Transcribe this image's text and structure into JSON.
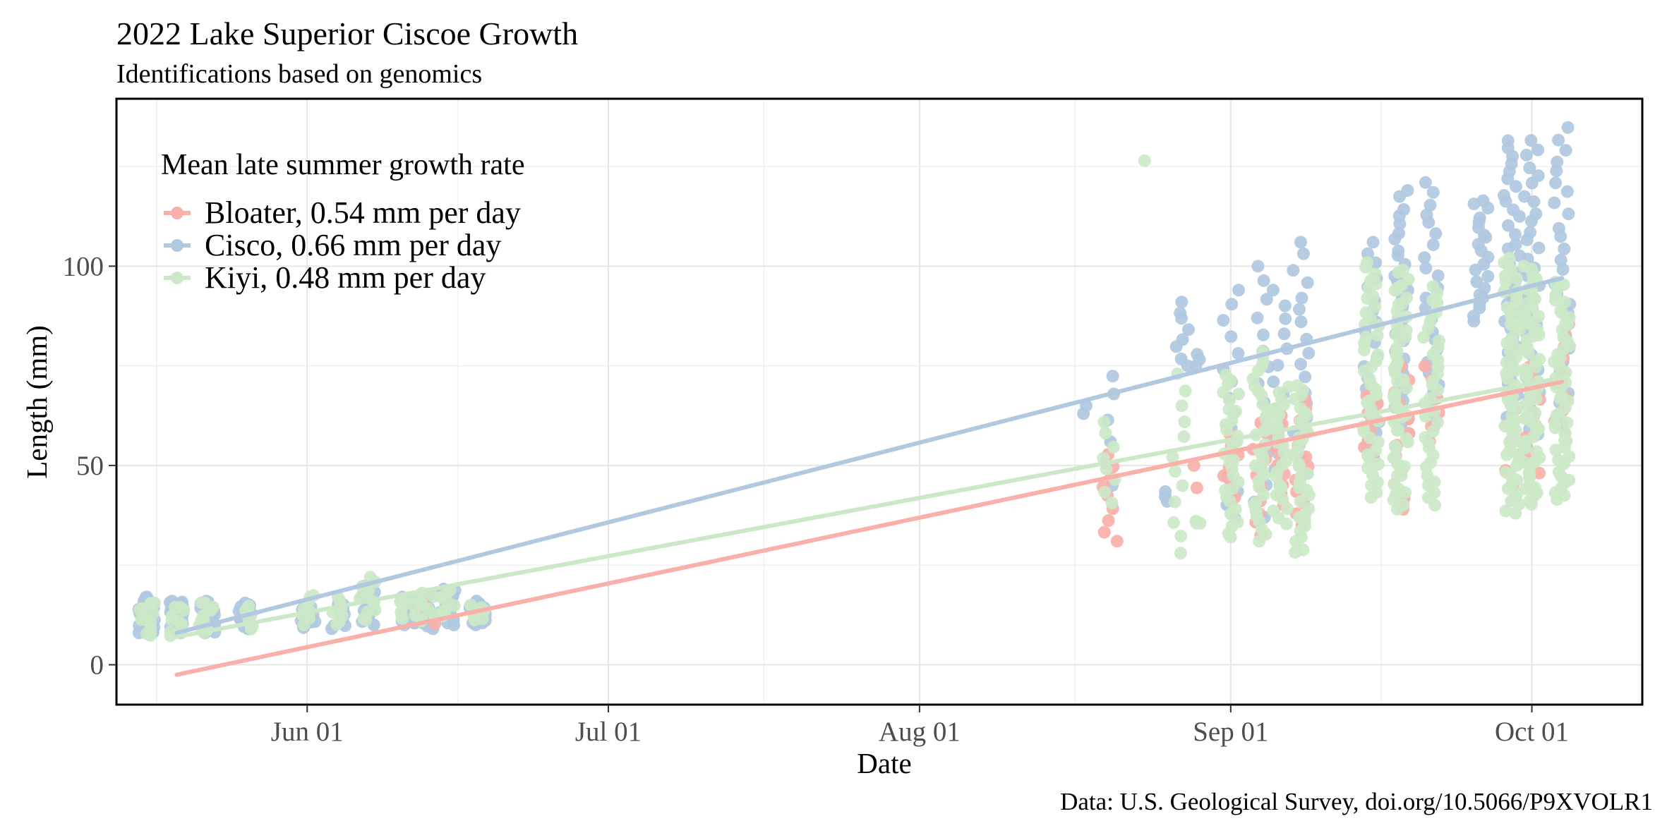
{
  "chart_data": {
    "type": "scatter",
    "title": "2022 Lake Superior Ciscoe Growth",
    "subtitle": "Identifications based on genomics",
    "xlabel": "Date",
    "ylabel": "Length (mm)",
    "caption": "Data: U.S. Geological Survey, doi.org/10.5066/P9XVOLR1",
    "x_axis": {
      "type": "date",
      "range": [
        "2022-05-13",
        "2022-10-12"
      ],
      "ticks": [
        {
          "value": "2022-06-01",
          "label": "Jun 01"
        },
        {
          "value": "2022-07-01",
          "label": "Jul 01"
        },
        {
          "value": "2022-08-01",
          "label": "Aug 01"
        },
        {
          "value": "2022-09-01",
          "label": "Sep 01"
        },
        {
          "value": "2022-10-01",
          "label": "Oct 01"
        }
      ]
    },
    "y_axis": {
      "range": [
        -10,
        142
      ],
      "ticks": [
        {
          "value": 0,
          "label": "0"
        },
        {
          "value": 50,
          "label": "50"
        },
        {
          "value": 100,
          "label": "100"
        }
      ]
    },
    "grid": true,
    "legend": {
      "title": "Mean late summer growth rate",
      "position": "top-left"
    },
    "series": [
      {
        "name": "Bloater, 0.54 mm per day",
        "color": "#F8B0A8",
        "trend": {
          "start": [
            "2022-05-19",
            -2.5
          ],
          "end": [
            "2022-10-04",
            71
          ]
        },
        "clusters": [
          {
            "date": "2022-06-13",
            "min": 10,
            "max": 17,
            "n": 5
          },
          {
            "date": "2022-08-20",
            "min": 31,
            "max": 53,
            "n": 9
          },
          {
            "date": "2022-08-29",
            "min": 44,
            "max": 50,
            "n": 2
          },
          {
            "date": "2022-09-01",
            "min": 42,
            "max": 58,
            "n": 7
          },
          {
            "date": "2022-09-04",
            "min": 32,
            "max": 61,
            "n": 10
          },
          {
            "date": "2022-09-06",
            "min": 40,
            "max": 63,
            "n": 10
          },
          {
            "date": "2022-09-08",
            "min": 35,
            "max": 67,
            "n": 12
          },
          {
            "date": "2022-09-15",
            "min": 52,
            "max": 68,
            "n": 8
          },
          {
            "date": "2022-09-18",
            "min": 39,
            "max": 75,
            "n": 12
          },
          {
            "date": "2022-09-21",
            "min": 56,
            "max": 75,
            "n": 6
          },
          {
            "date": "2022-09-29",
            "min": 45,
            "max": 72,
            "n": 8
          },
          {
            "date": "2022-10-01",
            "min": 48,
            "max": 75,
            "n": 10
          },
          {
            "date": "2022-10-04",
            "min": 58,
            "max": 86,
            "n": 10
          }
        ]
      },
      {
        "name": "Cisco, 0.66 mm per day",
        "color": "#B0C8E0",
        "trend": {
          "start": [
            "2022-05-19",
            8
          ],
          "end": [
            "2022-10-04",
            97
          ]
        },
        "clusters": [
          {
            "date": "2022-05-16",
            "min": 8,
            "max": 17,
            "n": 30
          },
          {
            "date": "2022-05-19",
            "min": 8,
            "max": 16,
            "n": 26
          },
          {
            "date": "2022-05-22",
            "min": 8,
            "max": 16,
            "n": 22
          },
          {
            "date": "2022-05-26",
            "min": 9,
            "max": 16,
            "n": 16
          },
          {
            "date": "2022-06-01",
            "min": 9,
            "max": 15,
            "n": 14
          },
          {
            "date": "2022-06-04",
            "min": 9,
            "max": 16,
            "n": 14
          },
          {
            "date": "2022-06-07",
            "min": 10,
            "max": 20,
            "n": 14
          },
          {
            "date": "2022-06-11",
            "min": 10,
            "max": 17,
            "n": 16
          },
          {
            "date": "2022-06-13",
            "min": 9,
            "max": 18,
            "n": 16
          },
          {
            "date": "2022-06-15",
            "min": 10,
            "max": 19,
            "n": 18
          },
          {
            "date": "2022-06-18",
            "min": 10,
            "max": 16,
            "n": 12
          },
          {
            "date": "2022-08-17",
            "min": 63,
            "max": 65,
            "n": 2
          },
          {
            "date": "2022-08-20",
            "min": 45,
            "max": 73,
            "n": 6
          },
          {
            "date": "2022-08-25",
            "min": 41,
            "max": 44,
            "n": 3
          },
          {
            "date": "2022-08-27",
            "min": 75,
            "max": 91,
            "n": 8
          },
          {
            "date": "2022-08-29",
            "min": 75,
            "max": 78,
            "n": 3
          },
          {
            "date": "2022-09-01",
            "min": 36,
            "max": 94,
            "n": 16
          },
          {
            "date": "2022-09-04",
            "min": 37,
            "max": 100,
            "n": 16
          },
          {
            "date": "2022-09-06",
            "min": 45,
            "max": 94,
            "n": 14
          },
          {
            "date": "2022-09-08",
            "min": 48,
            "max": 106,
            "n": 18
          },
          {
            "date": "2022-09-15",
            "min": 52,
            "max": 106,
            "n": 20
          },
          {
            "date": "2022-09-18",
            "min": 58,
            "max": 119,
            "n": 30
          },
          {
            "date": "2022-09-21",
            "min": 60,
            "max": 121,
            "n": 24
          },
          {
            "date": "2022-09-26",
            "min": 86,
            "max": 117,
            "n": 22
          },
          {
            "date": "2022-09-29",
            "min": 62,
            "max": 132,
            "n": 36
          },
          {
            "date": "2022-10-01",
            "min": 55,
            "max": 132,
            "n": 34
          },
          {
            "date": "2022-10-04",
            "min": 60,
            "max": 135,
            "n": 28
          }
        ]
      },
      {
        "name": "Kiyi, 0.48 mm per day",
        "color": "#CCE8C8",
        "trend": {
          "start": [
            "2022-05-19",
            7
          ],
          "end": [
            "2022-10-04",
            72
          ]
        },
        "clusters": [
          {
            "date": "2022-05-16",
            "min": 7,
            "max": 16,
            "n": 12
          },
          {
            "date": "2022-05-19",
            "min": 7,
            "max": 15,
            "n": 10
          },
          {
            "date": "2022-05-22",
            "min": 8,
            "max": 16,
            "n": 10
          },
          {
            "date": "2022-05-26",
            "min": 9,
            "max": 15,
            "n": 6
          },
          {
            "date": "2022-06-01",
            "min": 10,
            "max": 18,
            "n": 8
          },
          {
            "date": "2022-06-04",
            "min": 10,
            "max": 17,
            "n": 8
          },
          {
            "date": "2022-06-07",
            "min": 11,
            "max": 22,
            "n": 12
          },
          {
            "date": "2022-06-11",
            "min": 11,
            "max": 17,
            "n": 8
          },
          {
            "date": "2022-06-13",
            "min": 11,
            "max": 18,
            "n": 8
          },
          {
            "date": "2022-06-15",
            "min": 12,
            "max": 19,
            "n": 8
          },
          {
            "date": "2022-06-18",
            "min": 11,
            "max": 15,
            "n": 6
          },
          {
            "date": "2022-08-20",
            "min": 40,
            "max": 61,
            "n": 8
          },
          {
            "date": "2022-08-23",
            "min": 125,
            "max": 127,
            "n": 1
          },
          {
            "date": "2022-08-27",
            "min": 28,
            "max": 73,
            "n": 12
          },
          {
            "date": "2022-08-29",
            "min": 35,
            "max": 36,
            "n": 3
          },
          {
            "date": "2022-09-01",
            "min": 32,
            "max": 73,
            "n": 30
          },
          {
            "date": "2022-09-04",
            "min": 31,
            "max": 79,
            "n": 34
          },
          {
            "date": "2022-09-06",
            "min": 35,
            "max": 70,
            "n": 24
          },
          {
            "date": "2022-09-08",
            "min": 28,
            "max": 70,
            "n": 34
          },
          {
            "date": "2022-09-15",
            "min": 42,
            "max": 101,
            "n": 44
          },
          {
            "date": "2022-09-18",
            "min": 39,
            "max": 99,
            "n": 54
          },
          {
            "date": "2022-09-21",
            "min": 40,
            "max": 95,
            "n": 36
          },
          {
            "date": "2022-09-29",
            "min": 38,
            "max": 102,
            "n": 60
          },
          {
            "date": "2022-10-01",
            "min": 40,
            "max": 100,
            "n": 64
          },
          {
            "date": "2022-10-04",
            "min": 41,
            "max": 96,
            "n": 50
          }
        ]
      }
    ]
  }
}
